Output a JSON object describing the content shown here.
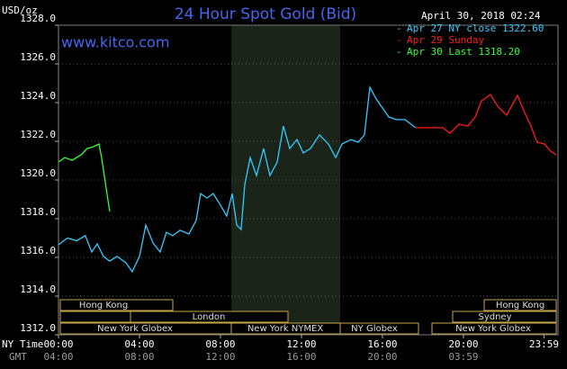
{
  "chart_data": {
    "type": "line",
    "title": "24 Hour Spot Gold (Bid)",
    "y_axis_label": "USD/oz",
    "watermark": "www.kitco.com",
    "timestamp": "April 30, 2018 02:24",
    "grid": true,
    "legend_position": "upper right",
    "xlim": [
      0,
      24.67
    ],
    "ylim": [
      1312,
      1328
    ],
    "yticks": [
      {
        "value": 1312,
        "label": "1312.0"
      },
      {
        "value": 1314,
        "label": "1314.0"
      },
      {
        "value": 1316,
        "label": "1316.0"
      },
      {
        "value": 1318,
        "label": "1318.0"
      },
      {
        "value": 1320,
        "label": "1320.0"
      },
      {
        "value": 1322,
        "label": "1322.0"
      },
      {
        "value": 1324,
        "label": "1324.0"
      },
      {
        "value": 1326,
        "label": "1326.0"
      },
      {
        "value": 1328,
        "label": "1328.0"
      }
    ],
    "xticks": [
      {
        "value": 0,
        "label": "00:00"
      },
      {
        "value": 4,
        "label": "04:00"
      },
      {
        "value": 8,
        "label": "08:00"
      },
      {
        "value": 12,
        "label": "12:00"
      },
      {
        "value": 16,
        "label": "16:00"
      },
      {
        "value": 20,
        "label": "20:00"
      },
      {
        "value": 23.98,
        "label": "23:59"
      }
    ],
    "gmt_tick_labels": [
      "04:00",
      "08:00",
      "12:00",
      "16:00",
      "20:00",
      "03:59"
    ],
    "row_labels": [
      "NY Time",
      "GMT"
    ],
    "sessions": [
      "Hong Kong",
      "London",
      "New York Globex",
      "New York NYMEX",
      "NY Globex",
      "Hong Kong",
      "Sydney",
      "New York Globex"
    ],
    "series": [
      {
        "name": "Apr 27 NY close 1322.60",
        "color": "#33ccff",
        "x": [
          0,
          0.44,
          0.89,
          1.33,
          1.64,
          1.91,
          2.22,
          2.53,
          2.89,
          3.33,
          3.64,
          4.0,
          4.31,
          4.67,
          5.02,
          5.33,
          5.64,
          6.0,
          6.44,
          6.8,
          7.02,
          7.33,
          7.64,
          8.0,
          8.31,
          8.58,
          8.8,
          9.02,
          9.2,
          9.47,
          9.78,
          10.13,
          10.44,
          10.8,
          11.11,
          11.42,
          11.78,
          12.09,
          12.44,
          12.89,
          13.33,
          13.69,
          14.0,
          14.44,
          14.8,
          15.11,
          15.38,
          15.69,
          16.0,
          16.31,
          16.67,
          17.11,
          17.64
        ],
        "values": [
          1316.65,
          1317.0,
          1316.86,
          1317.12,
          1316.28,
          1316.7,
          1316.05,
          1315.81,
          1316.05,
          1315.72,
          1315.26,
          1316.05,
          1317.67,
          1316.74,
          1316.28,
          1317.3,
          1317.12,
          1317.4,
          1317.21,
          1317.91,
          1319.3,
          1319.07,
          1319.3,
          1318.7,
          1318.14,
          1319.3,
          1317.67,
          1317.44,
          1319.77,
          1321.16,
          1320.23,
          1321.63,
          1320.23,
          1320.93,
          1322.79,
          1321.63,
          1322.09,
          1321.4,
          1321.63,
          1322.33,
          1321.86,
          1321.16,
          1321.86,
          1322.09,
          1321.95,
          1322.33,
          1324.79,
          1324.19,
          1323.72,
          1323.26,
          1323.12,
          1323.12,
          1322.7
        ]
      },
      {
        "name": "Apr 29 Sunday",
        "color": "#ff1a1a",
        "x": [
          17.64,
          18.98,
          19.33,
          19.78,
          20.22,
          20.58,
          20.89,
          21.33,
          21.69,
          22.13,
          22.67,
          23.02,
          23.33,
          23.64,
          24.0,
          24.31,
          24.58
        ],
        "values": [
          1322.7,
          1322.7,
          1322.42,
          1322.88,
          1322.79,
          1323.26,
          1324.09,
          1324.42,
          1323.81,
          1323.35,
          1324.37,
          1323.49,
          1322.79,
          1321.95,
          1321.86,
          1321.49,
          1321.3
        ]
      },
      {
        "name": "Apr 30 Last 1318.20",
        "color": "#33ff33",
        "x": [
          0,
          0.31,
          0.67,
          1.11,
          1.42,
          1.73,
          2.0,
          2.13,
          2.36,
          2.53
        ],
        "values": [
          1320.93,
          1321.16,
          1321.02,
          1321.3,
          1321.63,
          1321.72,
          1321.86,
          1321.16,
          1319.53,
          1318.37
        ]
      }
    ]
  }
}
